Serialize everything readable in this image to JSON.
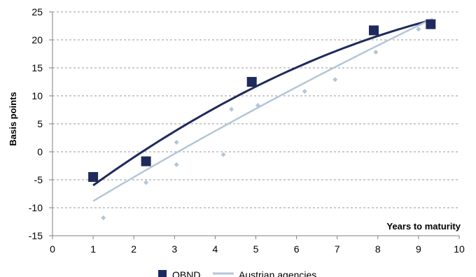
{
  "chart_data": {
    "type": "scatter",
    "xlabel": "Years to maturity",
    "ylabel": "Basis points",
    "xlim": [
      0,
      10
    ],
    "ylim": [
      -15,
      25
    ],
    "x_ticks": [
      "0",
      "1",
      "2",
      "3",
      "4",
      "5",
      "6",
      "7",
      "8",
      "9",
      "10"
    ],
    "y_ticks": [
      "25",
      "20",
      "15",
      "10",
      "5",
      "0",
      "-5",
      "-10",
      "-15"
    ],
    "grid": "horizontal dashed",
    "series": [
      {
        "name": "OBND",
        "marker": "square",
        "color": "#1f2a5c",
        "points": [
          [
            1.0,
            -4.5
          ],
          [
            2.3,
            -1.7
          ],
          [
            4.9,
            12.5
          ],
          [
            7.9,
            21.7
          ],
          [
            9.3,
            22.8
          ]
        ],
        "trend": [
          [
            1.0,
            -6.0
          ],
          [
            9.3,
            23.5
          ]
        ],
        "trend_curvature": -0.2
      },
      {
        "name": "Austrian agencies",
        "marker": "diamond",
        "color": "#b4c6d8",
        "points": [
          [
            1.25,
            -11.8
          ],
          [
            2.3,
            -5.5
          ],
          [
            3.05,
            1.7
          ],
          [
            3.05,
            -2.3
          ],
          [
            4.2,
            -0.5
          ],
          [
            4.4,
            7.6
          ],
          [
            5.05,
            8.3
          ],
          [
            6.2,
            10.8
          ],
          [
            6.95,
            12.9
          ],
          [
            7.95,
            17.8
          ],
          [
            9.0,
            21.9
          ]
        ],
        "trend": [
          [
            1.0,
            -8.8
          ],
          [
            9.35,
            23.8
          ]
        ],
        "trend_curvature": -0.05
      }
    ],
    "legend": "bottom"
  },
  "legend": {
    "obnd": "OBND",
    "agencies": "Austrian agencies"
  }
}
